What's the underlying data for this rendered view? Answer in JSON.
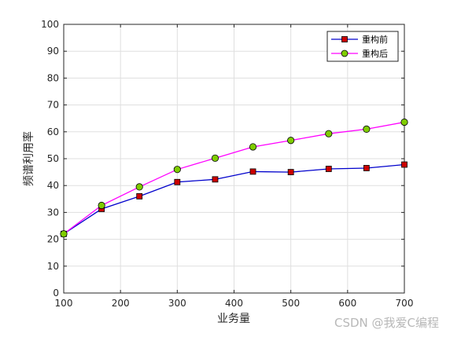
{
  "chart_data": {
    "type": "line",
    "x": [
      100,
      166.7,
      233.3,
      300,
      366.7,
      433.3,
      500,
      566.7,
      633.3,
      700
    ],
    "series": [
      {
        "name": "重构前",
        "values": [
          22,
          31.3,
          36,
          41.3,
          42.3,
          45.2,
          45,
          46.2,
          46.5,
          47.8
        ],
        "color": "#0000cc",
        "marker": "square",
        "marker_color": "#cc0000"
      },
      {
        "name": "重构后",
        "values": [
          22,
          32.6,
          39.5,
          46,
          50.2,
          54.4,
          56.8,
          59.3,
          61,
          63.6
        ],
        "color": "#ff00ff",
        "marker": "circle",
        "marker_color": "#7fcc00"
      }
    ],
    "xlabel": "业务量",
    "ylabel": "频谱利用率",
    "xlim": [
      100,
      700
    ],
    "ylim": [
      0,
      100
    ],
    "xticks": [
      100,
      200,
      300,
      400,
      500,
      600,
      700
    ],
    "yticks": [
      0,
      10,
      20,
      30,
      40,
      50,
      60,
      70,
      80,
      90,
      100
    ],
    "grid": true,
    "legend_position": "top-right"
  },
  "watermark": "CSDN @我爱C编程"
}
